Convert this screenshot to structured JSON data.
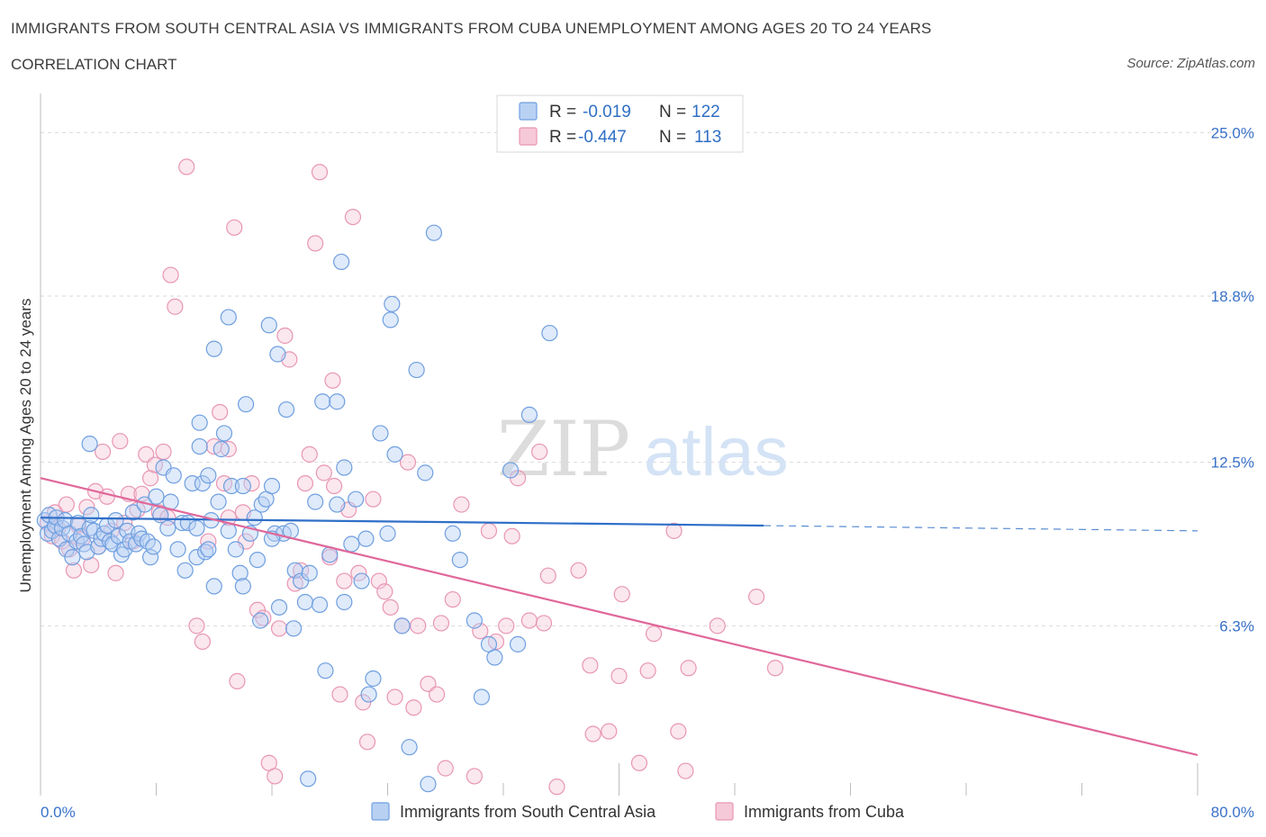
{
  "header": {
    "title": "IMMIGRANTS FROM SOUTH CENTRAL ASIA VS IMMIGRANTS FROM CUBA UNEMPLOYMENT AMONG AGES 20 TO 24 YEARS",
    "subtitle": "CORRELATION CHART",
    "source": "Source: ZipAtlas.com"
  },
  "watermark": {
    "zip": "ZIP",
    "atlas": "atlas"
  },
  "colors": {
    "series1": "#6f9fe0",
    "series1_fill": "#b8d1f3",
    "series1_line": "#2f6fc8",
    "series2": "#e896b4",
    "series2_fill": "#f6c9d9",
    "series2_line": "#e0679a",
    "grid": "#d9d9d9",
    "tick_label": "#3a72c8"
  },
  "legend": {
    "r_label": "R =",
    "n_label": "N =",
    "rows": [
      {
        "r": "-0.019",
        "n": "122"
      },
      {
        "r": "-0.447",
        "n": "113"
      }
    ]
  },
  "chart_data": {
    "type": "scatter",
    "title": "IMMIGRANTS FROM SOUTH CENTRAL ASIA VS IMMIGRANTS FROM CUBA UNEMPLOYMENT AMONG AGES 20 TO 24 YEARS",
    "xlabel": "",
    "ylabel": "Unemployment Among Ages 20 to 24 years",
    "xlim": [
      0,
      80
    ],
    "ylim": [
      0,
      26
    ],
    "x_tick_labels": [
      "0.0%",
      "80.0%"
    ],
    "y_ticks": [
      {
        "value": 25.0,
        "label": "25.0%"
      },
      {
        "value": 18.8,
        "label": "18.8%"
      },
      {
        "value": 12.5,
        "label": "12.5%"
      },
      {
        "value": 6.3,
        "label": "6.3%"
      }
    ],
    "series": [
      {
        "name": "Immigrants from South Central Asia",
        "r": -0.019,
        "n": 122,
        "trend": {
          "x0": 0,
          "y0": 10.4,
          "x1": 50,
          "y1": 10.1,
          "x_dash_end": 80,
          "y_dash_end": 9.9
        },
        "points": [
          [
            0.3,
            10.3
          ],
          [
            0.5,
            9.8
          ],
          [
            0.6,
            10.5
          ],
          [
            0.8,
            9.9
          ],
          [
            1.0,
            10.1
          ],
          [
            1.1,
            10.4
          ],
          [
            1.3,
            9.6
          ],
          [
            1.5,
            10.0
          ],
          [
            1.7,
            10.3
          ],
          [
            1.8,
            9.2
          ],
          [
            2.0,
            9.8
          ],
          [
            2.2,
            8.9
          ],
          [
            2.5,
            9.5
          ],
          [
            2.6,
            10.2
          ],
          [
            2.8,
            9.7
          ],
          [
            3.0,
            9.4
          ],
          [
            3.2,
            9.1
          ],
          [
            3.4,
            10.0
          ],
          [
            3.5,
            10.5
          ],
          [
            3.7,
            9.9
          ],
          [
            4.0,
            9.3
          ],
          [
            4.2,
            9.6
          ],
          [
            4.4,
            9.8
          ],
          [
            4.6,
            10.1
          ],
          [
            4.8,
            9.5
          ],
          [
            5.0,
            9.4
          ],
          [
            5.2,
            10.3
          ],
          [
            5.4,
            9.7
          ],
          [
            5.6,
            9.0
          ],
          [
            5.8,
            9.2
          ],
          [
            6.0,
            9.9
          ],
          [
            6.2,
            9.5
          ],
          [
            6.4,
            10.6
          ],
          [
            6.6,
            9.4
          ],
          [
            6.8,
            9.8
          ],
          [
            7.0,
            9.6
          ],
          [
            7.2,
            10.9
          ],
          [
            7.4,
            9.5
          ],
          [
            7.6,
            8.9
          ],
          [
            7.8,
            9.3
          ],
          [
            3.4,
            13.2
          ],
          [
            8.0,
            11.2
          ],
          [
            8.3,
            10.5
          ],
          [
            8.5,
            12.3
          ],
          [
            8.8,
            10.0
          ],
          [
            9.0,
            11.0
          ],
          [
            9.2,
            12.0
          ],
          [
            9.5,
            9.2
          ],
          [
            9.8,
            10.2
          ],
          [
            10.0,
            8.4
          ],
          [
            10.2,
            10.2
          ],
          [
            10.5,
            11.7
          ],
          [
            10.8,
            8.9
          ],
          [
            11.0,
            13.1
          ],
          [
            11.2,
            11.7
          ],
          [
            11.4,
            9.1
          ],
          [
            11.6,
            12.0
          ],
          [
            11.8,
            10.3
          ],
          [
            12.0,
            7.8
          ],
          [
            12.3,
            11.0
          ],
          [
            12.5,
            13.0
          ],
          [
            12.7,
            13.6
          ],
          [
            13.0,
            9.9
          ],
          [
            13.2,
            11.6
          ],
          [
            13.5,
            9.2
          ],
          [
            13.8,
            8.3
          ],
          [
            14.0,
            11.6
          ],
          [
            14.2,
            14.7
          ],
          [
            14.5,
            9.8
          ],
          [
            14.8,
            10.4
          ],
          [
            15.0,
            8.8
          ],
          [
            15.3,
            10.9
          ],
          [
            15.6,
            11.1
          ],
          [
            16.0,
            11.6
          ],
          [
            16.2,
            9.8
          ],
          [
            16.5,
            7.0
          ],
          [
            16.8,
            9.8
          ],
          [
            17.0,
            14.5
          ],
          [
            17.3,
            9.9
          ],
          [
            17.6,
            8.4
          ],
          [
            18.0,
            8.0
          ],
          [
            18.3,
            7.2
          ],
          [
            18.6,
            8.3
          ],
          [
            19.0,
            11.0
          ],
          [
            19.3,
            7.1
          ],
          [
            19.5,
            14.8
          ],
          [
            20.0,
            9.0
          ],
          [
            20.5,
            10.9
          ],
          [
            21.0,
            7.2
          ],
          [
            21.5,
            9.4
          ],
          [
            21.8,
            11.1
          ],
          [
            22.2,
            8.0
          ],
          [
            22.5,
            9.6
          ],
          [
            23.0,
            4.3
          ],
          [
            23.5,
            13.6
          ],
          [
            24.0,
            9.8
          ],
          [
            24.5,
            12.8
          ],
          [
            25.0,
            6.3
          ],
          [
            25.5,
            1.7
          ],
          [
            26.0,
            16.0
          ],
          [
            26.8,
            0.3
          ],
          [
            27.2,
            21.2
          ],
          [
            28.5,
            9.8
          ],
          [
            29.0,
            8.8
          ],
          [
            30.0,
            6.5
          ],
          [
            30.5,
            3.6
          ],
          [
            31.0,
            5.6
          ],
          [
            31.4,
            5.1
          ],
          [
            32.5,
            12.2
          ],
          [
            33.0,
            5.6
          ],
          [
            33.8,
            14.3
          ],
          [
            35.2,
            17.4
          ],
          [
            12.0,
            16.8
          ],
          [
            13.0,
            18.0
          ],
          [
            11.0,
            14.0
          ],
          [
            20.8,
            20.1
          ],
          [
            24.3,
            18.5
          ],
          [
            15.8,
            17.7
          ],
          [
            20.5,
            14.8
          ],
          [
            15.2,
            6.5
          ],
          [
            24.2,
            17.9
          ],
          [
            17.5,
            6.2
          ],
          [
            19.7,
            4.6
          ],
          [
            22.7,
            3.7
          ],
          [
            11.6,
            9.2
          ],
          [
            16.0,
            9.6
          ],
          [
            21.0,
            12.3
          ],
          [
            18.5,
            0.5
          ],
          [
            14.0,
            7.8
          ],
          [
            16.4,
            16.6
          ],
          [
            26.6,
            12.1
          ],
          [
            10.8,
            10.0
          ]
        ]
      },
      {
        "name": "Immigrants from Cuba",
        "r": -0.447,
        "n": 113,
        "trend": {
          "x0": 0,
          "y0": 11.9,
          "x1": 80,
          "y1": 1.4
        },
        "points": [
          [
            0.5,
            10.2
          ],
          [
            0.8,
            9.7
          ],
          [
            1.0,
            10.6
          ],
          [
            1.2,
            10.0
          ],
          [
            1.5,
            9.5
          ],
          [
            1.8,
            10.9
          ],
          [
            2.0,
            9.2
          ],
          [
            2.3,
            8.4
          ],
          [
            2.6,
            10.1
          ],
          [
            2.9,
            9.6
          ],
          [
            3.2,
            10.8
          ],
          [
            3.5,
            8.6
          ],
          [
            3.8,
            11.4
          ],
          [
            4.0,
            9.3
          ],
          [
            4.3,
            12.9
          ],
          [
            4.6,
            11.2
          ],
          [
            4.9,
            9.9
          ],
          [
            5.2,
            8.3
          ],
          [
            5.5,
            13.3
          ],
          [
            5.8,
            10.2
          ],
          [
            6.1,
            11.3
          ],
          [
            6.4,
            9.5
          ],
          [
            6.7,
            10.7
          ],
          [
            7.0,
            11.3
          ],
          [
            7.3,
            12.8
          ],
          [
            7.6,
            11.9
          ],
          [
            7.9,
            12.4
          ],
          [
            8.2,
            10.6
          ],
          [
            8.5,
            12.9
          ],
          [
            8.8,
            10.4
          ],
          [
            9.0,
            19.6
          ],
          [
            9.3,
            18.4
          ],
          [
            10.1,
            23.7
          ],
          [
            10.8,
            6.3
          ],
          [
            11.2,
            5.7
          ],
          [
            11.6,
            9.5
          ],
          [
            12.0,
            13.1
          ],
          [
            12.4,
            14.4
          ],
          [
            12.7,
            11.7
          ],
          [
            13.0,
            10.4
          ],
          [
            13.4,
            21.4
          ],
          [
            13.6,
            4.2
          ],
          [
            14.0,
            10.6
          ],
          [
            14.2,
            9.5
          ],
          [
            14.6,
            11.7
          ],
          [
            15.0,
            6.9
          ],
          [
            15.4,
            6.6
          ],
          [
            15.8,
            1.1
          ],
          [
            16.2,
            0.6
          ],
          [
            16.5,
            6.2
          ],
          [
            16.9,
            17.3
          ],
          [
            17.2,
            16.4
          ],
          [
            17.6,
            7.9
          ],
          [
            18.0,
            8.4
          ],
          [
            18.3,
            11.7
          ],
          [
            18.6,
            12.8
          ],
          [
            19.0,
            20.8
          ],
          [
            19.3,
            23.5
          ],
          [
            19.6,
            12.1
          ],
          [
            20.0,
            8.9
          ],
          [
            20.3,
            11.6
          ],
          [
            20.7,
            3.7
          ],
          [
            21.0,
            8.0
          ],
          [
            21.3,
            10.7
          ],
          [
            21.6,
            21.8
          ],
          [
            22.0,
            8.3
          ],
          [
            22.3,
            3.4
          ],
          [
            22.6,
            1.9
          ],
          [
            23.0,
            11.1
          ],
          [
            23.4,
            8.0
          ],
          [
            23.8,
            7.6
          ],
          [
            24.2,
            7.0
          ],
          [
            24.5,
            3.6
          ],
          [
            25.0,
            6.3
          ],
          [
            25.4,
            12.5
          ],
          [
            25.8,
            3.2
          ],
          [
            26.1,
            6.3
          ],
          [
            26.8,
            4.1
          ],
          [
            27.4,
            3.7
          ],
          [
            27.7,
            6.4
          ],
          [
            28.0,
            0.9
          ],
          [
            28.5,
            7.3
          ],
          [
            29.1,
            10.9
          ],
          [
            30.0,
            0.6
          ],
          [
            30.4,
            6.1
          ],
          [
            31.0,
            9.9
          ],
          [
            31.5,
            5.7
          ],
          [
            32.2,
            6.3
          ],
          [
            32.6,
            9.7
          ],
          [
            33.0,
            11.9
          ],
          [
            33.8,
            6.5
          ],
          [
            34.5,
            12.9
          ],
          [
            34.8,
            6.4
          ],
          [
            35.1,
            8.2
          ],
          [
            35.7,
            0.2
          ],
          [
            37.2,
            8.4
          ],
          [
            38.0,
            4.8
          ],
          [
            38.2,
            2.2
          ],
          [
            39.3,
            2.3
          ],
          [
            40.0,
            4.4
          ],
          [
            40.2,
            7.5
          ],
          [
            41.4,
            1.1
          ],
          [
            42.0,
            4.6
          ],
          [
            42.4,
            6.0
          ],
          [
            43.8,
            9.9
          ],
          [
            44.1,
            2.3
          ],
          [
            44.6,
            0.8
          ],
          [
            44.8,
            4.7
          ],
          [
            46.8,
            6.3
          ],
          [
            49.5,
            7.4
          ],
          [
            50.8,
            4.7
          ],
          [
            13.0,
            13.0
          ],
          [
            20.2,
            15.6
          ]
        ]
      }
    ]
  },
  "bottom_legend": {
    "items": [
      {
        "label": "Immigrants from South Central Asia"
      },
      {
        "label": "Immigrants from Cuba"
      }
    ]
  }
}
